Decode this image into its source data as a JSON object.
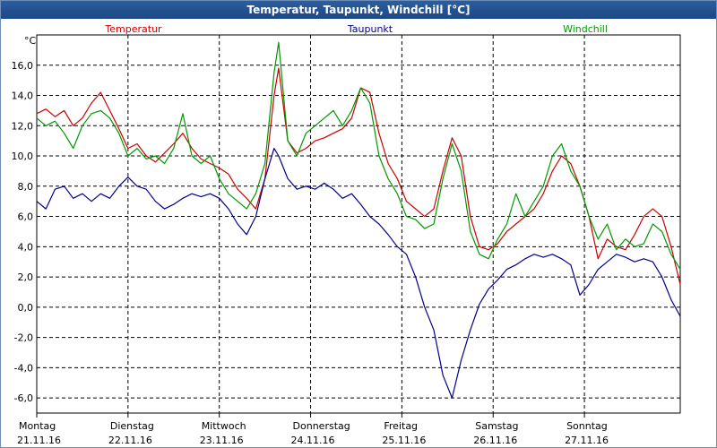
{
  "chart_data": {
    "type": "line",
    "title": "Temperatur, Taupunkt, Windchill [°C]",
    "ylabel": "°C",
    "ylim": [
      -7,
      18
    ],
    "yticks": [
      -6,
      -4,
      -2,
      0,
      2,
      4,
      6,
      8,
      10,
      12,
      14,
      16
    ],
    "ytick_labels": [
      "-6,0",
      "-4,0",
      "-2,0",
      "0,0",
      "2,0",
      "4,0",
      "6,0",
      "8,0",
      "10,0",
      "12,0",
      "14,0",
      "16,0"
    ],
    "xlim": [
      0,
      7.05
    ],
    "x_days": [
      {
        "day": "Montag",
        "date": "21.11.16"
      },
      {
        "day": "Dienstag",
        "date": "22.11.16"
      },
      {
        "day": "Mittwoch",
        "date": "23.11.16"
      },
      {
        "day": "Donnerstag",
        "date": "24.11.16"
      },
      {
        "day": "Freitag",
        "date": "25.11.16"
      },
      {
        "day": "Samstag",
        "date": "26.11.16"
      },
      {
        "day": "Sonntag",
        "date": "27.11.16"
      }
    ],
    "grid": true,
    "legend_position": "top",
    "series": [
      {
        "name": "Temperatur",
        "color": "#cc0000",
        "x": [
          0,
          0.1,
          0.2,
          0.3,
          0.4,
          0.5,
          0.6,
          0.7,
          0.8,
          0.9,
          1.0,
          1.1,
          1.2,
          1.3,
          1.4,
          1.5,
          1.6,
          1.7,
          1.8,
          1.9,
          2.0,
          2.1,
          2.2,
          2.3,
          2.4,
          2.5,
          2.6,
          2.65,
          2.75,
          2.85,
          2.95,
          3.05,
          3.15,
          3.25,
          3.35,
          3.45,
          3.55,
          3.65,
          3.75,
          3.85,
          3.95,
          4.05,
          4.15,
          4.25,
          4.35,
          4.45,
          4.55,
          4.65,
          4.75,
          4.85,
          4.95,
          5.05,
          5.15,
          5.25,
          5.35,
          5.45,
          5.55,
          5.65,
          5.75,
          5.85,
          5.95,
          6.05,
          6.15,
          6.25,
          6.35,
          6.45,
          6.55,
          6.65,
          6.75,
          6.85,
          6.95,
          7.05
        ],
        "values": [
          12.8,
          13.1,
          12.6,
          13.0,
          12.0,
          12.5,
          13.5,
          14.2,
          13.0,
          11.8,
          10.5,
          10.8,
          10.0,
          9.6,
          10.2,
          10.8,
          11.5,
          10.5,
          9.8,
          9.5,
          9.2,
          8.8,
          7.8,
          7.2,
          6.5,
          8.5,
          14.0,
          15.8,
          11.0,
          10.2,
          10.5,
          11.0,
          11.2,
          11.5,
          11.8,
          12.5,
          14.5,
          14.2,
          11.5,
          9.5,
          8.5,
          7.0,
          6.5,
          6.0,
          6.5,
          9.0,
          11.2,
          10.0,
          6.0,
          4.0,
          3.8,
          4.2,
          5.0,
          5.5,
          6.0,
          6.5,
          7.5,
          9.0,
          10.0,
          9.5,
          8.0,
          6.0,
          3.2,
          4.5,
          4.0,
          3.8,
          4.8,
          6.0,
          6.5,
          6.0,
          4.0,
          1.5
        ]
      },
      {
        "name": "Taupunkt",
        "color": "#00008b",
        "x": [
          0,
          0.1,
          0.2,
          0.3,
          0.4,
          0.5,
          0.6,
          0.7,
          0.8,
          0.9,
          1.0,
          1.1,
          1.2,
          1.3,
          1.4,
          1.5,
          1.6,
          1.7,
          1.8,
          1.9,
          2.0,
          2.1,
          2.2,
          2.3,
          2.4,
          2.5,
          2.6,
          2.65,
          2.75,
          2.85,
          2.95,
          3.05,
          3.15,
          3.25,
          3.35,
          3.45,
          3.55,
          3.65,
          3.75,
          3.85,
          3.95,
          4.05,
          4.15,
          4.25,
          4.35,
          4.45,
          4.55,
          4.65,
          4.75,
          4.85,
          4.95,
          5.05,
          5.15,
          5.25,
          5.35,
          5.45,
          5.55,
          5.65,
          5.75,
          5.85,
          5.95,
          6.05,
          6.15,
          6.25,
          6.35,
          6.45,
          6.55,
          6.65,
          6.75,
          6.85,
          6.95,
          7.05
        ],
        "values": [
          7.0,
          6.5,
          7.8,
          8.0,
          7.2,
          7.5,
          7.0,
          7.5,
          7.2,
          8.0,
          8.6,
          8.0,
          7.8,
          7.0,
          6.5,
          6.8,
          7.2,
          7.5,
          7.3,
          7.5,
          7.2,
          6.5,
          5.5,
          4.8,
          6.0,
          8.5,
          10.5,
          10.0,
          8.5,
          7.8,
          8.0,
          7.8,
          8.2,
          7.8,
          7.2,
          7.5,
          6.8,
          6.0,
          5.5,
          4.8,
          4.0,
          3.5,
          2.0,
          0.0,
          -1.5,
          -4.5,
          -6.0,
          -3.5,
          -1.5,
          0.2,
          1.2,
          1.8,
          2.5,
          2.8,
          3.2,
          3.5,
          3.3,
          3.5,
          3.2,
          2.8,
          0.8,
          1.5,
          2.5,
          3.0,
          3.5,
          3.3,
          3.0,
          3.2,
          3.0,
          2.0,
          0.5,
          -0.6
        ]
      },
      {
        "name": "Windchill",
        "color": "#009900",
        "x": [
          0,
          0.1,
          0.2,
          0.3,
          0.4,
          0.5,
          0.6,
          0.7,
          0.8,
          0.9,
          1.0,
          1.1,
          1.2,
          1.3,
          1.4,
          1.5,
          1.6,
          1.7,
          1.8,
          1.9,
          2.0,
          2.1,
          2.2,
          2.3,
          2.4,
          2.5,
          2.6,
          2.65,
          2.75,
          2.85,
          2.95,
          3.05,
          3.15,
          3.25,
          3.35,
          3.45,
          3.55,
          3.65,
          3.75,
          3.85,
          3.95,
          4.05,
          4.15,
          4.25,
          4.35,
          4.45,
          4.55,
          4.65,
          4.75,
          4.85,
          4.95,
          5.05,
          5.15,
          5.25,
          5.35,
          5.45,
          5.55,
          5.65,
          5.75,
          5.85,
          5.95,
          6.05,
          6.15,
          6.25,
          6.35,
          6.45,
          6.55,
          6.65,
          6.75,
          6.85,
          6.95,
          7.05
        ],
        "values": [
          12.5,
          12.0,
          12.3,
          11.5,
          10.5,
          12.0,
          12.8,
          13.0,
          12.5,
          11.5,
          10.0,
          10.5,
          9.8,
          10.0,
          9.5,
          10.5,
          12.8,
          10.0,
          9.5,
          10.0,
          8.5,
          7.5,
          7.0,
          6.5,
          7.5,
          9.5,
          15.5,
          17.5,
          11.0,
          10.0,
          11.5,
          12.0,
          12.5,
          13.0,
          12.0,
          13.0,
          14.5,
          13.5,
          10.0,
          8.5,
          7.5,
          6.0,
          5.8,
          5.2,
          5.5,
          8.5,
          10.8,
          9.0,
          5.0,
          3.5,
          3.2,
          4.5,
          5.5,
          7.5,
          6.0,
          7.0,
          8.0,
          10.0,
          10.8,
          9.0,
          8.0,
          6.0,
          4.5,
          5.5,
          3.8,
          4.5,
          4.0,
          4.2,
          5.5,
          5.0,
          3.5,
          2.5
        ]
      }
    ]
  }
}
